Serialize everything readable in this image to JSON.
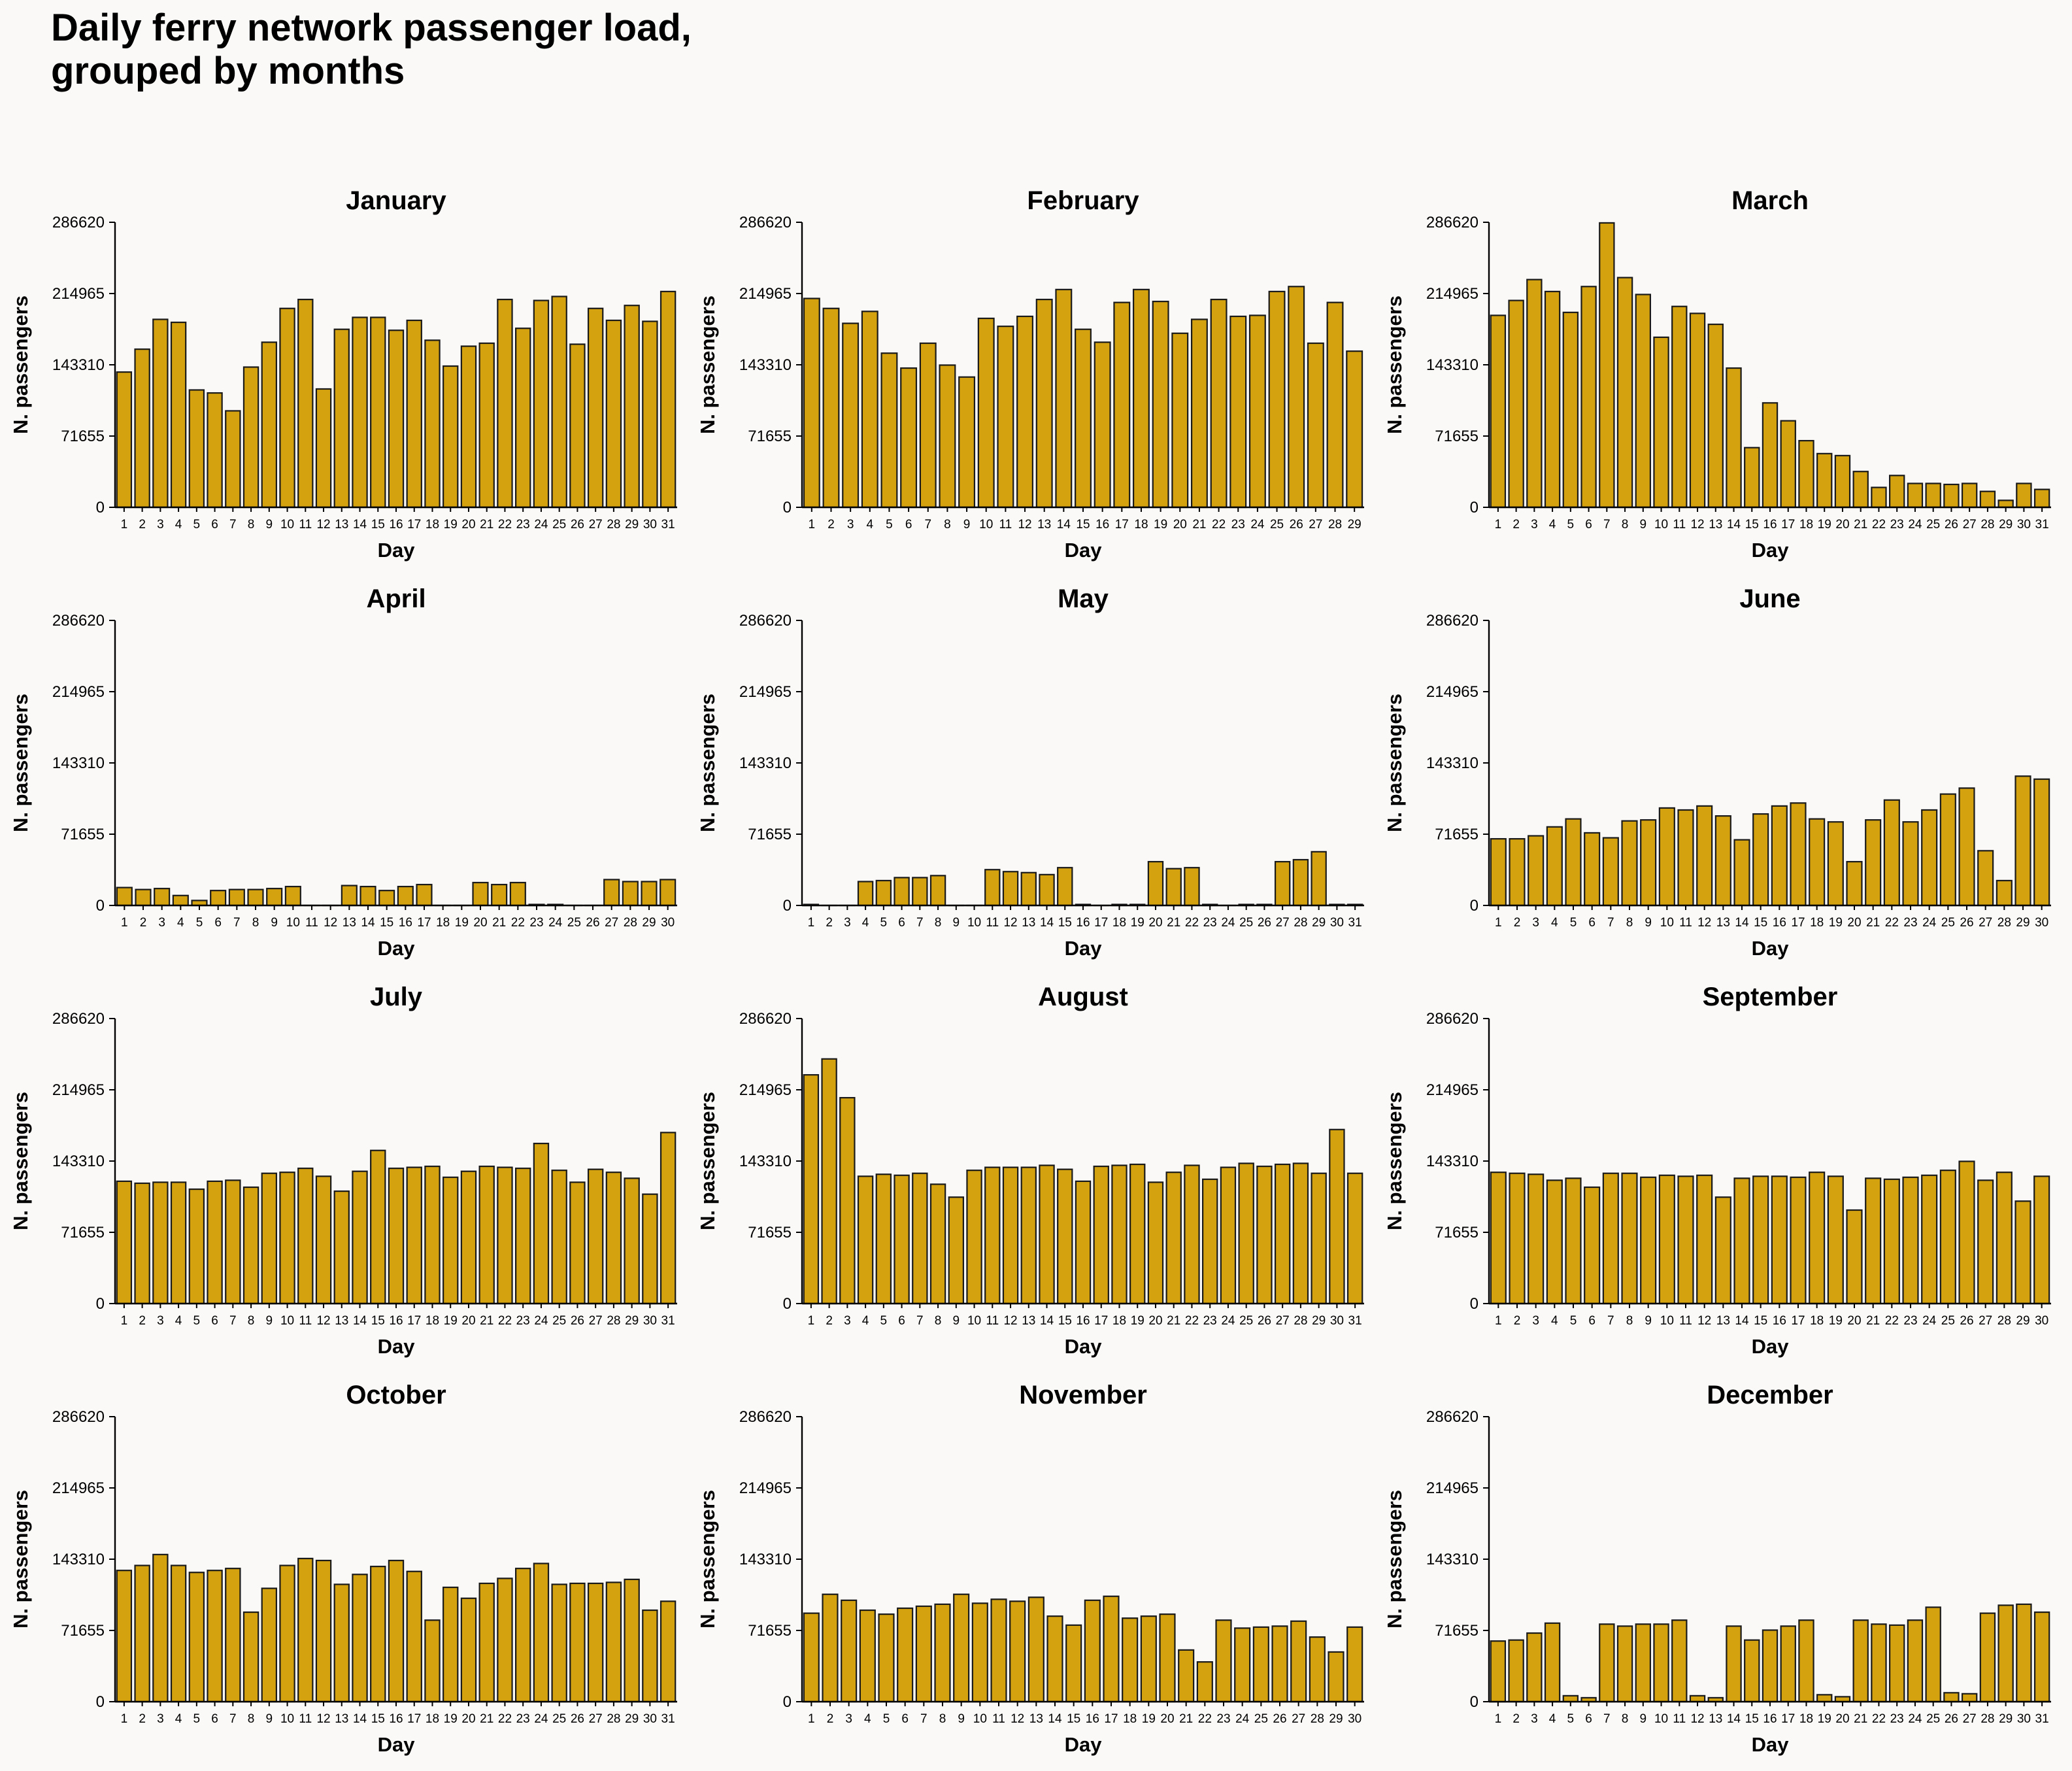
{
  "figure": {
    "title_lines": [
      "Daily ferry network passenger load,",
      "grouped by months"
    ]
  },
  "colors": {
    "bar_fill": "#d4a20f",
    "bar_edge": "#1a1a1a",
    "background": "#faf9f7",
    "text": "#000000"
  },
  "chart_data": {
    "type": "bar",
    "layout": "grid-4x3",
    "ylim": [
      0,
      286620
    ],
    "yticks": [
      0,
      71655,
      143310,
      214965,
      286620
    ],
    "grid": false,
    "xlabel": "Day",
    "ylabel": "N. passengers",
    "panels": [
      {
        "title": "January",
        "values": [
          136000,
          159000,
          189000,
          186000,
          118000,
          115000,
          97000,
          141000,
          166000,
          200000,
          209000,
          119000,
          179000,
          191000,
          191000,
          178000,
          188000,
          168000,
          142000,
          162000,
          165000,
          209000,
          180000,
          208000,
          212000,
          164000,
          200000,
          188000,
          203000,
          187000,
          217000
        ]
      },
      {
        "title": "February",
        "values": [
          210000,
          200000,
          185000,
          197000,
          155000,
          140000,
          165000,
          143000,
          131000,
          190000,
          182000,
          192000,
          209000,
          219000,
          179000,
          166000,
          206000,
          219000,
          207000,
          175000,
          189000,
          209000,
          192000,
          193000,
          217000,
          222000,
          165000,
          206000,
          157000
        ]
      },
      {
        "title": "March",
        "values": [
          193000,
          208000,
          229000,
          217000,
          196000,
          222000,
          286000,
          231000,
          214000,
          171000,
          202000,
          195000,
          184000,
          140000,
          60000,
          105000,
          87000,
          67000,
          54000,
          52000,
          36000,
          20000,
          32000,
          24000,
          24000,
          23000,
          24000,
          16000,
          7000,
          24000,
          18000
        ]
      },
      {
        "title": "April",
        "values": [
          18000,
          16000,
          17000,
          10000,
          5000,
          15000,
          16000,
          16000,
          17000,
          19000,
          0,
          0,
          20000,
          19000,
          15000,
          19000,
          21000,
          0,
          0,
          23000,
          21000,
          23000,
          1000,
          1000,
          0,
          0,
          26000,
          24000,
          24000,
          26000
        ]
      },
      {
        "title": "May",
        "values": [
          1000,
          0,
          0,
          24000,
          25000,
          28000,
          28000,
          30000,
          0,
          0,
          36000,
          34000,
          33000,
          31000,
          38000,
          1000,
          0,
          1000,
          1000,
          44000,
          37000,
          38000,
          1000,
          0,
          1000,
          1000,
          44000,
          46000,
          54000,
          1000,
          1000
        ]
      },
      {
        "title": "June",
        "values": [
          67000,
          67000,
          70000,
          79000,
          87000,
          73000,
          68000,
          85000,
          86000,
          98000,
          96000,
          100000,
          90000,
          66000,
          92000,
          100000,
          103000,
          87000,
          84000,
          44000,
          86000,
          106000,
          84000,
          96000,
          112000,
          118000,
          55000,
          25000,
          130000,
          127000
        ]
      },
      {
        "title": "July",
        "values": [
          123000,
          121000,
          122000,
          122000,
          115000,
          123000,
          124000,
          117000,
          131000,
          132000,
          136000,
          128000,
          113000,
          133000,
          154000,
          136000,
          137000,
          138000,
          127000,
          133000,
          138000,
          137000,
          136000,
          161000,
          134000,
          122000,
          135000,
          132000,
          126000,
          110000,
          172000
        ]
      },
      {
        "title": "August",
        "values": [
          230000,
          246000,
          207000,
          128000,
          130000,
          129000,
          131000,
          120000,
          107000,
          134000,
          137000,
          137000,
          137000,
          139000,
          135000,
          123000,
          138000,
          139000,
          140000,
          122000,
          132000,
          139000,
          125000,
          137000,
          141000,
          138000,
          140000,
          141000,
          131000,
          175000,
          131000
        ]
      },
      {
        "title": "September",
        "values": [
          132000,
          131000,
          130000,
          124000,
          126000,
          117000,
          131000,
          131000,
          127000,
          129000,
          128000,
          129000,
          107000,
          126000,
          128000,
          128000,
          127000,
          132000,
          128000,
          94000,
          126000,
          125000,
          127000,
          129000,
          134000,
          143000,
          124000,
          132000,
          103000,
          128000
        ]
      },
      {
        "title": "October",
        "values": [
          132000,
          137000,
          148000,
          137000,
          130000,
          132000,
          134000,
          90000,
          114000,
          137000,
          144000,
          142000,
          118000,
          128000,
          136000,
          142000,
          131000,
          82000,
          115000,
          104000,
          119000,
          124000,
          134000,
          139000,
          118000,
          119000,
          119000,
          120000,
          123000,
          92000,
          101000
        ]
      },
      {
        "title": "November",
        "values": [
          89000,
          108000,
          102000,
          92000,
          88000,
          94000,
          96000,
          98000,
          108000,
          99000,
          103000,
          101000,
          105000,
          86000,
          77000,
          102000,
          106000,
          84000,
          86000,
          88000,
          52000,
          40000,
          82000,
          74000,
          75000,
          76000,
          81000,
          65000,
          50000,
          75000
        ]
      },
      {
        "title": "December",
        "values": [
          61000,
          62000,
          69000,
          79000,
          6000,
          4000,
          78000,
          76000,
          78000,
          78000,
          82000,
          6000,
          4000,
          76000,
          62000,
          72000,
          76000,
          82000,
          7000,
          5000,
          82000,
          78000,
          77000,
          82000,
          95000,
          9000,
          8000,
          89000,
          97000,
          98000,
          90000
        ]
      }
    ]
  }
}
